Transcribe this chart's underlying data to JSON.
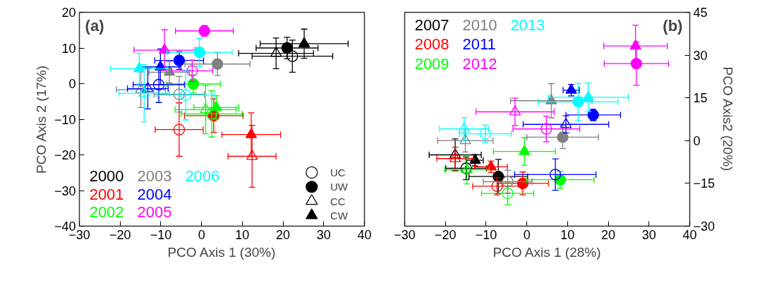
{
  "chart_data": [
    {
      "type": "scatter",
      "title": "(a)",
      "xlabel": "PCO Axis 1 (30%)",
      "ylabel": "PCO Axis 2 (17%)",
      "xlim": [
        -30,
        40
      ],
      "ylim": [
        -40,
        20
      ],
      "xticks": [
        -30,
        -20,
        -10,
        0,
        10,
        20,
        30,
        40
      ],
      "yticks": [
        -40,
        -30,
        -20,
        -10,
        0,
        10,
        20
      ],
      "legend": "bottom",
      "series": [
        {
          "name": "2000",
          "color": "#000000",
          "marker": [
            "circle_open",
            "circle",
            "triangle_open",
            "triangle"
          ],
          "x": [
            22.3,
            21.0,
            18.3,
            25.2
          ],
          "values": [
            7.7,
            10.0,
            8.5,
            11.2
          ],
          "xerrors": [
            9.9,
            7.6,
            9.2,
            10.8
          ],
          "errors": [
            4.5,
            3,
            4.3,
            4.1
          ]
        },
        {
          "name": "2001",
          "color": "#ff0000",
          "marker": [
            "circle_open",
            "circle",
            "triangle_open",
            "triangle"
          ],
          "x": [
            -5.5,
            3.0,
            12.4,
            12.2
          ],
          "values": [
            -12.9,
            -9.0,
            -20.4,
            -14.3
          ],
          "xerrors": [
            5.9,
            7.2,
            5.9,
            7.2
          ],
          "errors": [
            7.5,
            4.7,
            8.7,
            6.1
          ]
        },
        {
          "name": "2002",
          "color": "#00ff00",
          "marker": [
            "circle_open",
            "circle",
            "triangle_open",
            "triangle"
          ],
          "x": [
            2.5,
            -2.0,
            1.0,
            3.6
          ],
          "values": [
            -8.5,
            -0.1,
            -7.3,
            -6.7
          ],
          "xerrors": [
            7.5,
            6.6,
            7.5,
            5.5
          ],
          "errors": [
            6.5,
            2.5,
            6.8,
            3.3
          ]
        },
        {
          "name": "2003",
          "color": "#808080",
          "marker": [
            "circle_open",
            "circle",
            "triangle_open",
            "triangle"
          ],
          "x": [
            -5.5,
            3.9,
            -14.9,
            -7.9
          ],
          "values": [
            -3.0,
            5.5,
            -1.7,
            3.2
          ],
          "xerrors": [
            6.2,
            8,
            6,
            5
          ],
          "errors": [
            5,
            3.2,
            5,
            3
          ]
        },
        {
          "name": "2004",
          "color": "#0000ff",
          "marker": [
            "circle_open",
            "circle",
            "triangle_open",
            "triangle"
          ],
          "x": [
            -10.5,
            -5.5,
            -13.2,
            -10.1
          ],
          "values": [
            -0.3,
            6.5,
            -1.4,
            4.7
          ],
          "xerrors": [
            6.3,
            6,
            5,
            5
          ],
          "errors": [
            5,
            2.5,
            5.7,
            5
          ]
        },
        {
          "name": "2005",
          "color": "#ff00ff",
          "marker": [
            "circle_open",
            "circle",
            "triangle_open",
            "triangle"
          ],
          "x": [
            -2.3,
            0.7,
            null,
            -9.1
          ],
          "values": [
            3.6,
            14.8,
            null,
            9.4
          ],
          "xerrors": [
            5,
            7.1,
            null,
            7.5
          ],
          "errors": [
            3,
            1.5,
            null,
            5.7
          ]
        },
        {
          "name": "2006",
          "color": "#00ffff",
          "marker": [
            "circle_open",
            "circle",
            "triangle_open",
            "triangle"
          ],
          "x": [
            -3.9,
            -0.5,
            -14.1,
            -15.3
          ],
          "values": [
            -3.2,
            8.8,
            -2.7,
            4.2
          ],
          "xerrors": [
            7,
            8,
            6.2,
            7
          ],
          "errors": [
            7,
            3.9,
            8,
            4.3
          ]
        },
        {
          "name": "UC",
          "color": "#000000",
          "marker": "circle_open"
        },
        {
          "name": "UW",
          "color": "#000000",
          "marker": "circle"
        },
        {
          "name": "CC",
          "color": "#000000",
          "marker": "triangle_open"
        },
        {
          "name": "CW",
          "color": "#000000",
          "marker": "triangle"
        }
      ]
    },
    {
      "type": "scatter",
      "title": "(b)",
      "xlabel": "PCO Axis 1 (28%)",
      "y2label": "PCO Axis2 (20%)",
      "xlim": [
        -30,
        40
      ],
      "y2lim": [
        -30,
        45
      ],
      "xticks": [
        -30,
        -20,
        -10,
        0,
        10,
        20,
        30,
        40
      ],
      "y2ticks": [
        -30,
        -15,
        0,
        15,
        30,
        45
      ],
      "legend": "top left",
      "series": [
        {
          "name": "2007",
          "color": "#000000",
          "axis": "y2",
          "marker": [
            "circle_open",
            "circle",
            "triangle_open",
            "triangle"
          ],
          "x": [
            -14.9,
            -7.0,
            -17.6,
            -12.7
          ],
          "values": [
            -9.7,
            -12.6,
            -5.0,
            -6.9
          ],
          "xerrors": [
            5,
            7.2,
            6.4,
            2
          ],
          "errors": [
            4,
            6,
            5.6,
            2
          ]
        },
        {
          "name": "2008",
          "color": "#ff0000",
          "axis": "y2",
          "marker": [
            "circle_open",
            "circle",
            "triangle_open",
            "triangle"
          ],
          "x": [
            -7.3,
            -1.0,
            -17.6,
            -8.8
          ],
          "values": [
            -16.0,
            -15.0,
            -6.3,
            -9.2
          ],
          "xerrors": [
            6,
            6.3,
            4.5,
            4
          ],
          "errors": [
            3,
            4,
            4,
            2
          ]
        },
        {
          "name": "2009",
          "color": "#00ff00",
          "axis": "y2",
          "marker": [
            "circle_open",
            "circle",
            "triangle_open",
            "triangle"
          ],
          "x": [
            -4.7,
            8.2,
            -14.7,
            -0.6
          ],
          "values": [
            -18.5,
            -13.7,
            -10.2,
            -3.8
          ],
          "xerrors": [
            6.4,
            8.3,
            5.5,
            7.6
          ],
          "errors": [
            4,
            3,
            5,
            4.8
          ]
        },
        {
          "name": "2010",
          "color": "#808080",
          "axis": "y2",
          "marker": [
            "circle_open",
            "circle",
            "triangle_open",
            "triangle"
          ],
          "x": [
            -4.7,
            8.8,
            -15.1,
            6.0
          ],
          "values": [
            -14.4,
            1.2,
            0.0,
            14.0
          ],
          "xerrors": [
            6,
            8.8,
            6.8,
            10
          ],
          "errors": [
            4,
            4,
            4,
            6
          ]
        },
        {
          "name": "2011",
          "color": "#0000ff",
          "axis": "y2",
          "marker": [
            "circle_open",
            "circle",
            "triangle_open",
            "triangle"
          ],
          "x": [
            7.0,
            16.3,
            9.6,
            10.9
          ],
          "values": [
            -11.9,
            9.0,
            5.7,
            17.7
          ],
          "xerrors": [
            10,
            6.7,
            10.5,
            2
          ],
          "errors": [
            5.5,
            2,
            3,
            2
          ]
        },
        {
          "name": "2012",
          "color": "#ff00ff",
          "axis": "y2",
          "marker": [
            "circle_open",
            "circle",
            "triangle_open",
            "triangle"
          ],
          "x": [
            4.8,
            26.9,
            -2.9,
            26.7
          ],
          "values": [
            4.1,
            27.0,
            10.1,
            33.2
          ],
          "xerrors": [
            8.2,
            7.9,
            9.6,
            7.8
          ],
          "errors": [
            4.5,
            7.6,
            4.8,
            7.3
          ]
        },
        {
          "name": "2013",
          "color": "#00ffff",
          "axis": "y2",
          "marker": [
            "circle_open",
            "circle",
            "triangle_open",
            "triangle"
          ],
          "x": [
            -10.2,
            12.6,
            -15.4,
            15.1
          ],
          "values": [
            2.4,
            13.6,
            4.1,
            15.2
          ],
          "xerrors": [
            6.4,
            9.8,
            6,
            9.8
          ],
          "errors": [
            3,
            6.5,
            4,
            5
          ]
        }
      ]
    }
  ]
}
